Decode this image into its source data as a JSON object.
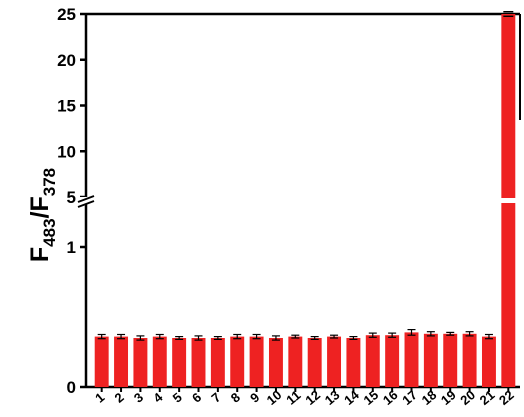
{
  "chart_data": {
    "type": "bar",
    "title": "",
    "xlabel": "",
    "ylabel_main": "F",
    "ylabel_sub1": "483",
    "ylabel_sep": "/F",
    "ylabel_sub2": "378",
    "categories": [
      "1",
      "2",
      "3",
      "4",
      "5",
      "6",
      "7",
      "8",
      "9",
      "10",
      "11",
      "12",
      "13",
      "14",
      "15",
      "16",
      "17",
      "18",
      "19",
      "20",
      "21",
      "22"
    ],
    "values": [
      0.36,
      0.36,
      0.35,
      0.36,
      0.35,
      0.35,
      0.35,
      0.36,
      0.36,
      0.35,
      0.36,
      0.35,
      0.36,
      0.35,
      0.37,
      0.37,
      0.39,
      0.38,
      0.38,
      0.38,
      0.36,
      25.0
    ],
    "errors": [
      0.015,
      0.015,
      0.015,
      0.015,
      0.01,
      0.015,
      0.01,
      0.015,
      0.015,
      0.015,
      0.01,
      0.01,
      0.01,
      0.01,
      0.015,
      0.015,
      0.02,
      0.015,
      0.01,
      0.015,
      0.015,
      0.25
    ],
    "y_ticks_lower": [
      "0",
      "1"
    ],
    "y_ticks_upper": [
      "5",
      "10",
      "15",
      "20",
      "25"
    ],
    "ylim_lower": [
      0,
      1.4
    ],
    "ylim_upper": [
      5,
      25
    ],
    "axis_break": true,
    "bar_color": "#ee2222",
    "grid": false,
    "legend": "none"
  }
}
